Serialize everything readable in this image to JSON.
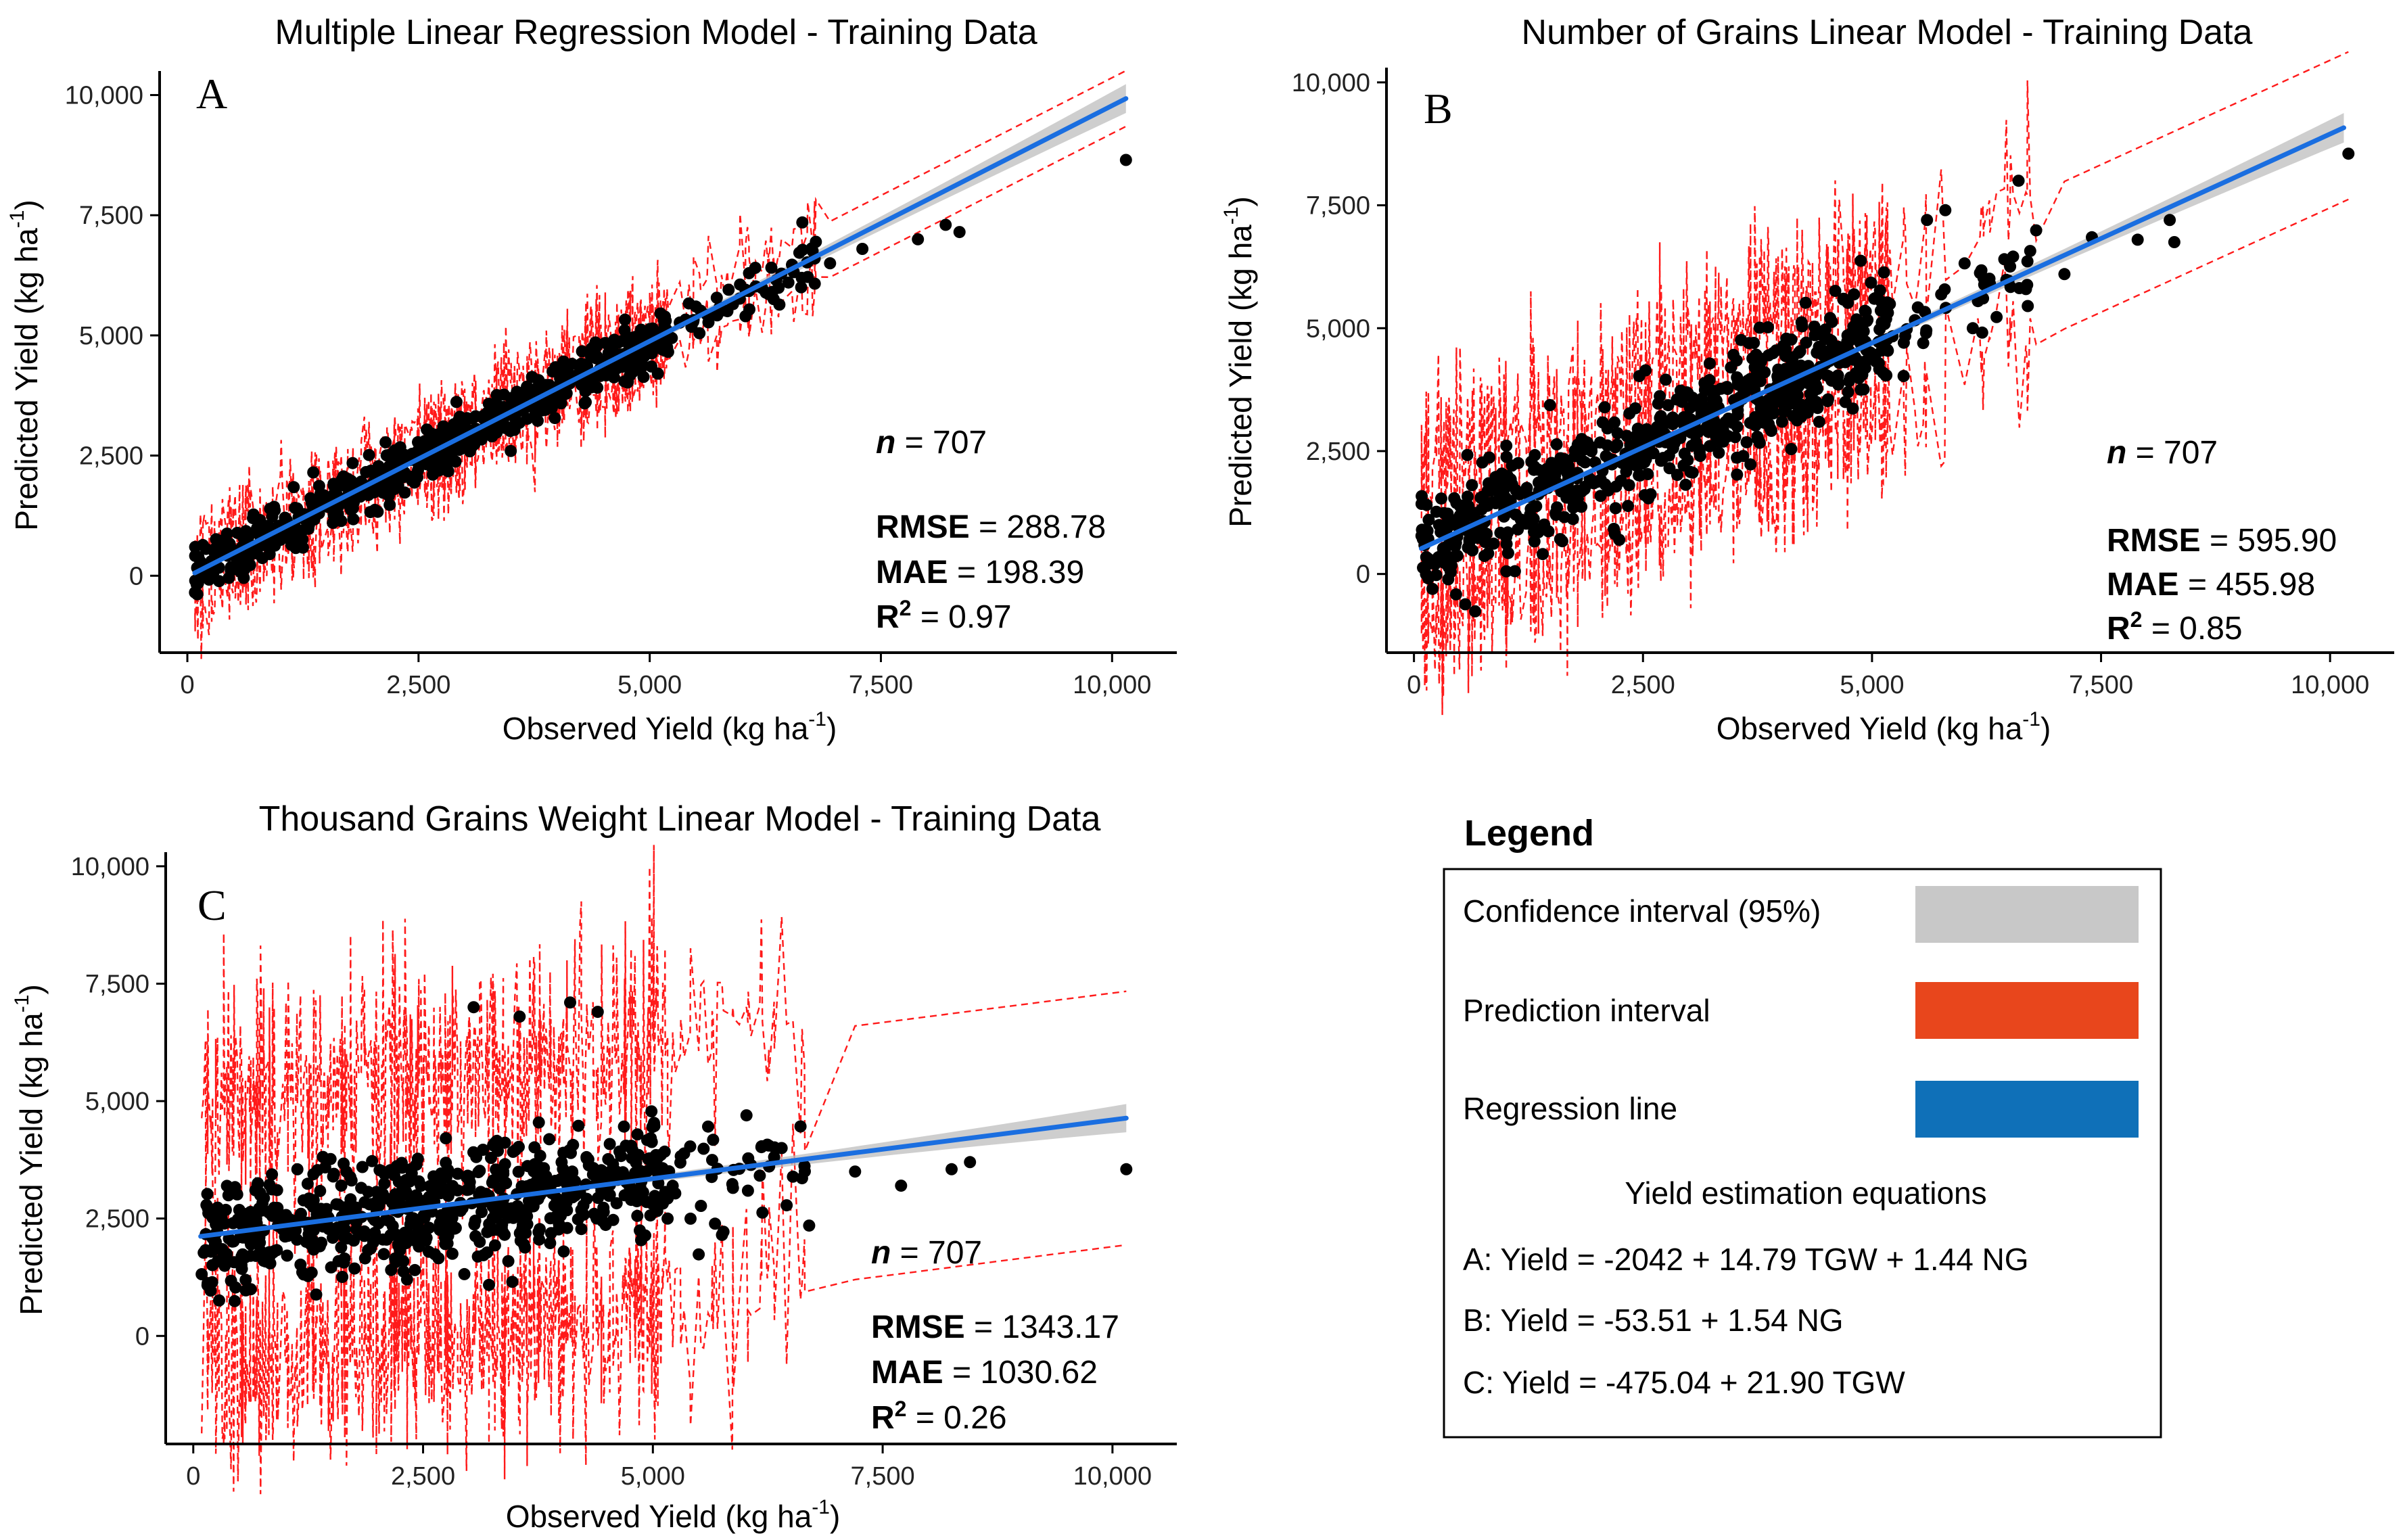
{
  "chart_data": [
    {
      "id": "A",
      "type": "scatter",
      "title": "Multiple Linear Regression Model - Training Data",
      "panel_label": "A",
      "xlabel": "Observed Yield (kg ha",
      "ylabel": "Predicted Yield (kg ha",
      "unit_superscript": "-1",
      "xlim": [
        -300,
        10700
      ],
      "ylim": [
        -1600,
        10500
      ],
      "xticks": [
        0,
        2500,
        5000,
        7500,
        10000
      ],
      "yticks": [
        0,
        2500,
        5000,
        7500,
        10000
      ],
      "xtick_labels": [
        "0",
        "2,500",
        "5,000",
        "7,500",
        "10,000"
      ],
      "ytick_labels": [
        "0",
        "2,500",
        "5,000",
        "7,500",
        "10,000"
      ],
      "regression": {
        "intercept": -20,
        "slope": 0.98
      },
      "prediction_interval_halfwidth": 580,
      "interval_noise": 420,
      "points": {
        "n": 707,
        "residual_sd": 270,
        "highlights": [
          [
            10150,
            8650
          ],
          [
            8350,
            7150
          ],
          [
            8200,
            7300
          ],
          [
            7900,
            7000
          ],
          [
            7300,
            6800
          ],
          [
            6950,
            6500
          ],
          [
            6650,
            7350
          ],
          [
            6500,
            6100
          ],
          [
            5900,
            5650
          ],
          [
            5500,
            5600
          ]
        ]
      },
      "stats": {
        "n_label": "n",
        "n_value": "= 707",
        "rmse_label": "RMSE",
        "rmse_value": "= 288.78",
        "mae_label": "MAE",
        "mae_value": "= 198.39",
        "r2_label": "R",
        "r2_sup": "2",
        "r2_value": "= 0.97"
      }
    },
    {
      "id": "B",
      "type": "scatter",
      "title": "Number of Grains Linear Model - Training Data",
      "panel_label": "B",
      "xlabel": "Observed Yield (kg ha",
      "ylabel": "Predicted Yield (kg ha",
      "unit_superscript": "-1",
      "xlim": [
        -300,
        10700
      ],
      "ylim": [
        -1600,
        10300
      ],
      "xticks": [
        0,
        2500,
        5000,
        7500,
        10000
      ],
      "yticks": [
        0,
        2500,
        5000,
        7500,
        10000
      ],
      "xtick_labels": [
        "0",
        "2,500",
        "5,000",
        "7,500",
        "10,000"
      ],
      "ytick_labels": [
        "0",
        "2,500",
        "5,000",
        "7,500",
        "10,000"
      ],
      "regression": {
        "intercept": 450,
        "slope": 0.85
      },
      "prediction_interval_halfwidth": 1500,
      "interval_noise": 900,
      "points": {
        "n": 707,
        "residual_sd": 560,
        "highlights": [
          [
            10200,
            8550
          ],
          [
            8300,
            6750
          ],
          [
            8250,
            7200
          ],
          [
            7900,
            6800
          ],
          [
            7400,
            6850
          ],
          [
            7100,
            6100
          ],
          [
            6700,
            5450
          ],
          [
            6600,
            8000
          ],
          [
            6100,
            5000
          ],
          [
            5800,
            7400
          ],
          [
            5600,
            7200
          ]
        ]
      },
      "stats": {
        "n_label": "n",
        "n_value": "= 707",
        "rmse_label": "RMSE",
        "rmse_value": "= 595.90",
        "mae_label": "MAE",
        "mae_value": "= 455.98",
        "r2_label": "R",
        "r2_sup": "2",
        "r2_value": "= 0.85"
      }
    },
    {
      "id": "C",
      "type": "scatter",
      "title": "Thousand Grains Weight Linear Model - Training Data",
      "panel_label": "C",
      "xlabel": "Observed Yield (kg ha",
      "ylabel": "Predicted Yield (kg ha",
      "unit_superscript": "-1",
      "xlim": [
        -300,
        10700
      ],
      "ylim": [
        -2300,
        10300
      ],
      "xticks": [
        0,
        2500,
        5000,
        7500,
        10000
      ],
      "yticks": [
        0,
        2500,
        5000,
        7500,
        10000
      ],
      "xtick_labels": [
        "0",
        "2,500",
        "5,000",
        "7,500",
        "10,000"
      ],
      "ytick_labels": [
        "0",
        "2,500",
        "5,000",
        "7,500",
        "10,000"
      ],
      "regression": {
        "intercept": 2100,
        "slope": 0.25
      },
      "prediction_interval_halfwidth": 2700,
      "interval_noise": 1300,
      "points": {
        "n": 707,
        "residual_sd": 620,
        "highlights": [
          [
            10150,
            3550
          ],
          [
            8450,
            3700
          ],
          [
            8250,
            3550
          ],
          [
            7700,
            3200
          ],
          [
            7200,
            3500
          ],
          [
            6700,
            2350
          ],
          [
            3050,
            7000
          ],
          [
            3550,
            6800
          ],
          [
            4100,
            7100
          ],
          [
            4400,
            6900
          ]
        ]
      },
      "stats": {
        "n_label": "n",
        "n_value": "= 707",
        "rmse_label": "RMSE",
        "rmse_value": "= 1343.17",
        "mae_label": "MAE",
        "mae_value": "= 1030.62",
        "r2_label": "R",
        "r2_sup": "2",
        "r2_value": "= 0.26"
      }
    }
  ],
  "legend": {
    "title": "Legend",
    "items": [
      {
        "label": "Confidence  interval  (95%)",
        "color": "#c8c8c8"
      },
      {
        "label": "Prediction  interval",
        "color": "#e8461c"
      },
      {
        "label": "Regression  line",
        "color": "#0f70b8"
      }
    ],
    "equations_title": "Yield  estimation  equations",
    "equations": [
      "A:  Yield  = -2042 + 14.79 TGW + 1.44 NG",
      "B:  Yield  = -53.51 + 1.54 NG",
      "C:  Yield  = -475.04 + 21.90 TGW"
    ]
  },
  "colors": {
    "regression_line": "#1a6ee0",
    "prediction_interval": "#ff1a1a",
    "confidence_band": "#bdbdbd",
    "points": "#000000"
  }
}
